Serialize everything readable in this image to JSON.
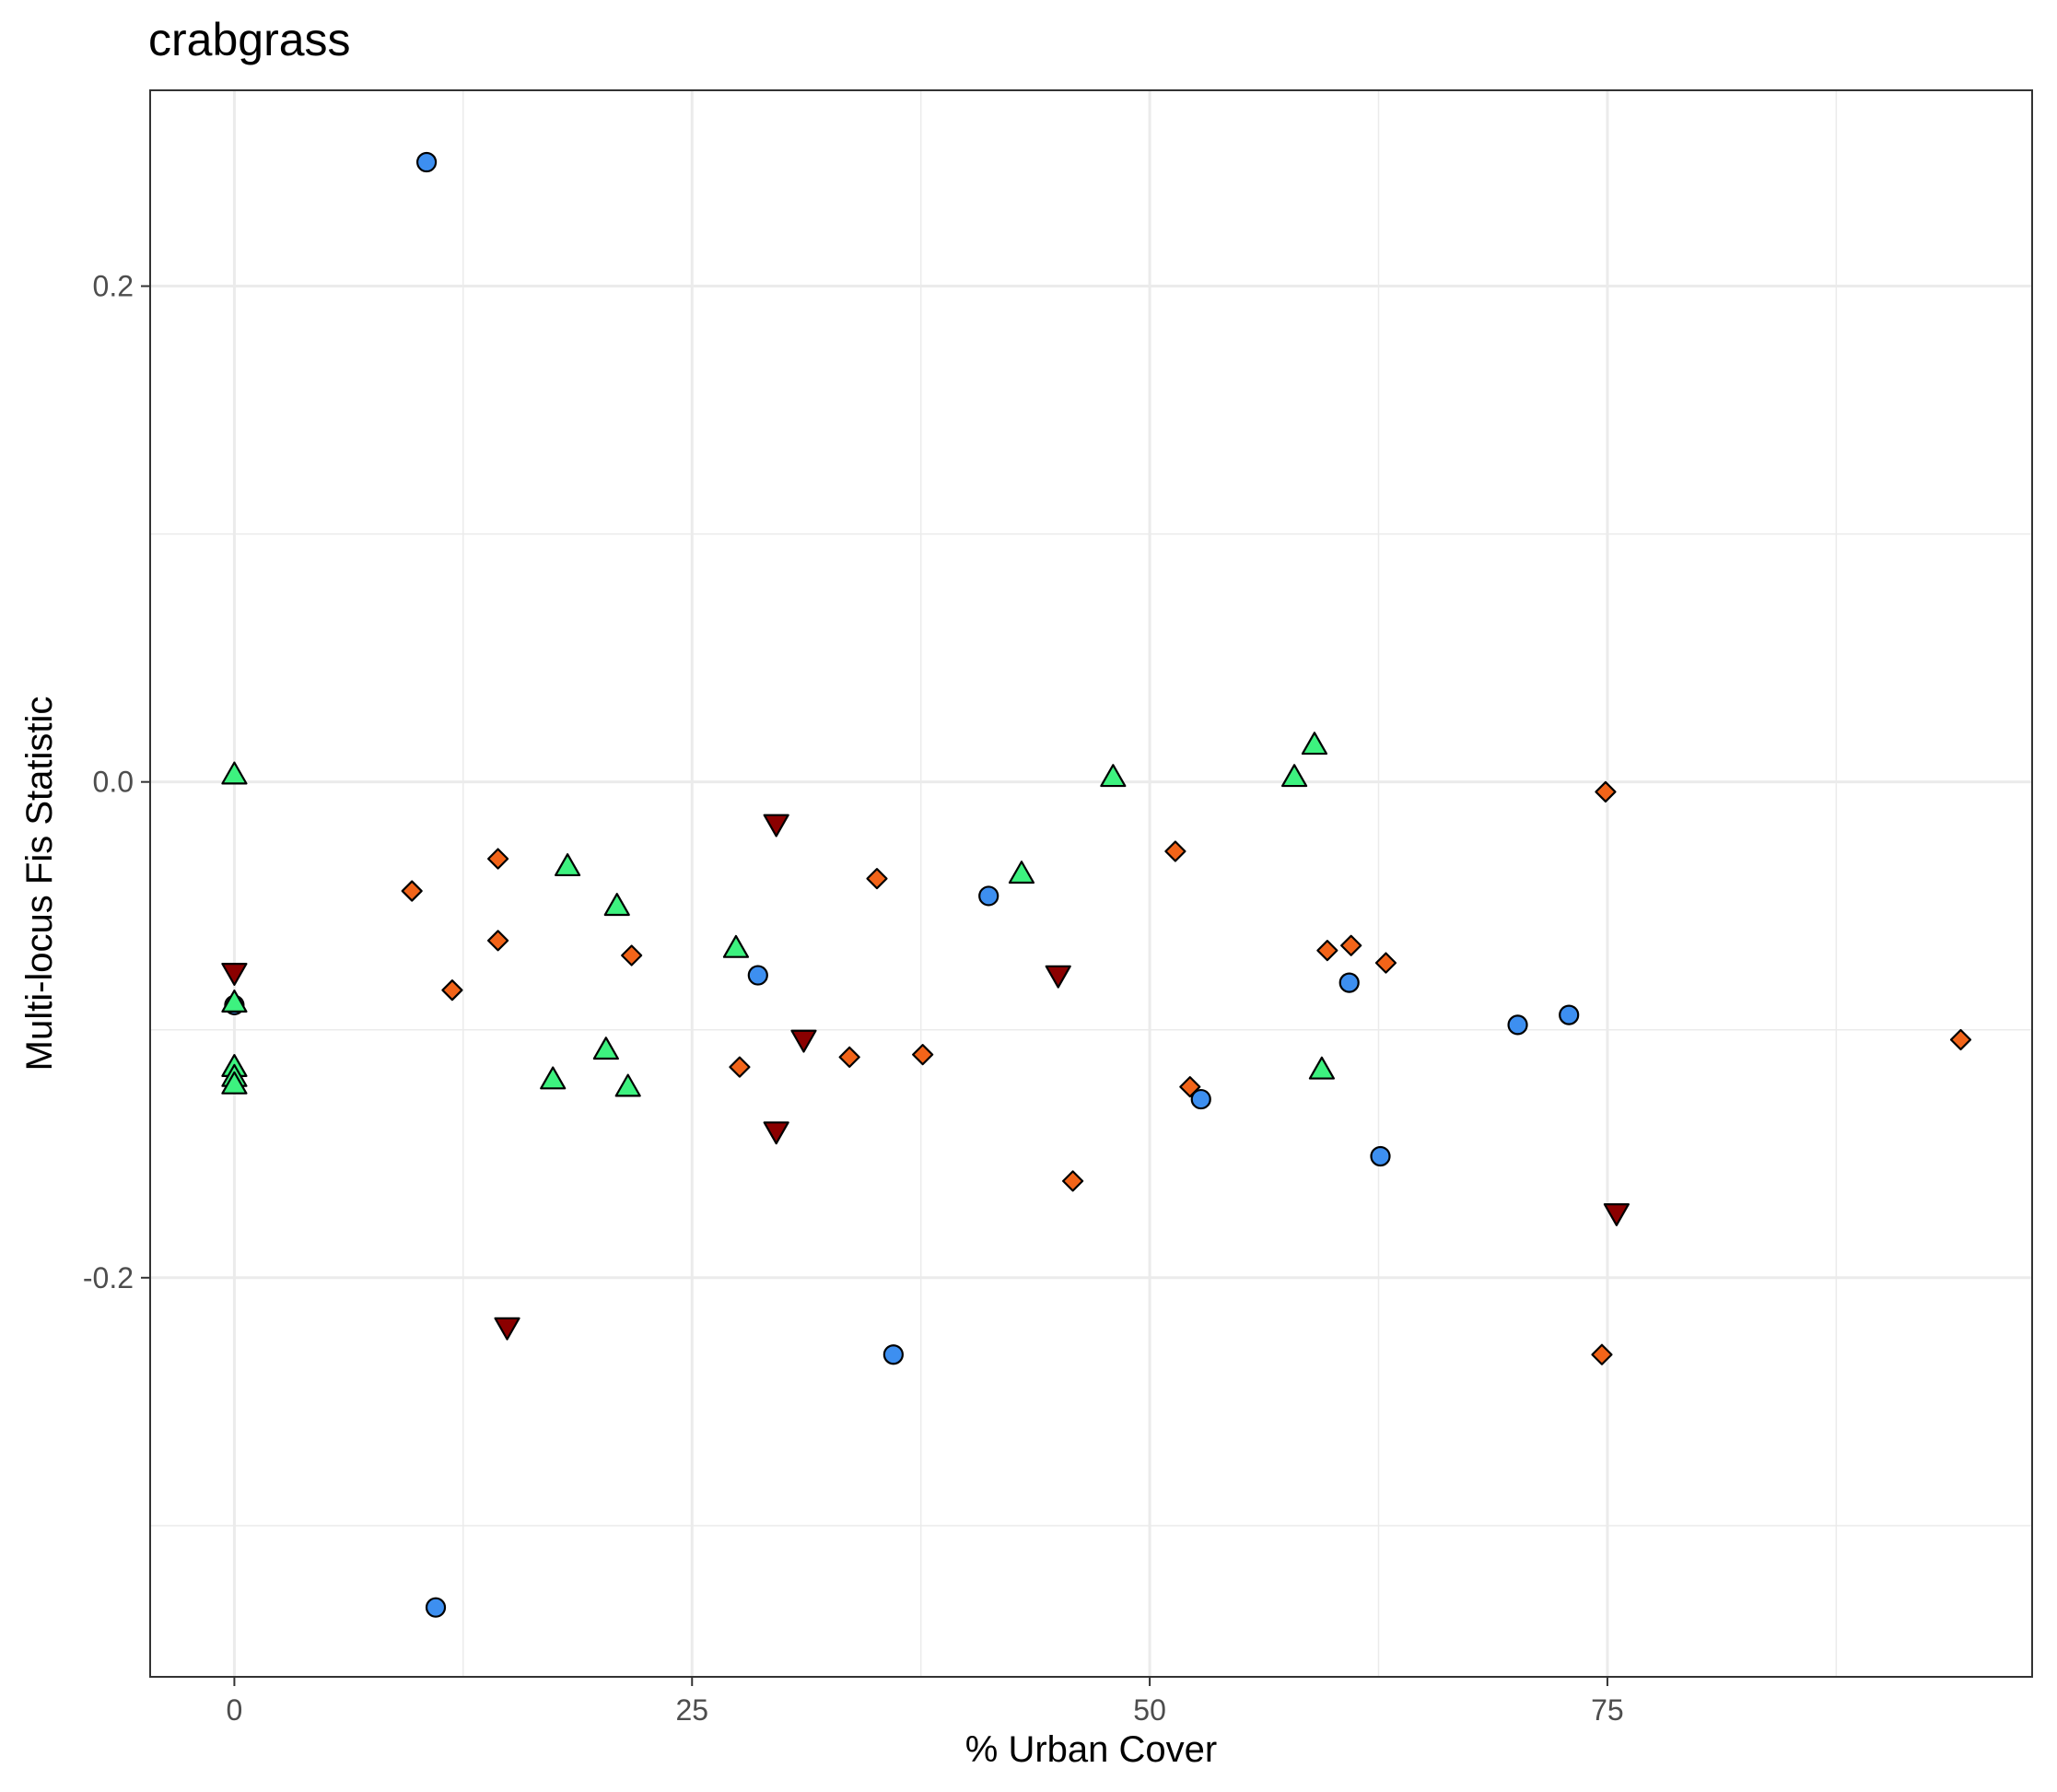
{
  "chart_data": {
    "type": "scatter",
    "title": "crabgrass",
    "xlabel": "% Urban Cover",
    "ylabel": "Multi-locus Fis Statistic",
    "xlim": [
      -4.6,
      98.2
    ],
    "ylim": [
      -0.361,
      0.279
    ],
    "x_ticks": [
      0,
      25,
      50,
      75
    ],
    "x_tick_labels": [
      "0",
      "25",
      "50",
      "75"
    ],
    "y_ticks": [
      -0.2,
      0.0,
      0.2
    ],
    "y_tick_labels": [
      "-0.2",
      "0.0",
      "0.2"
    ],
    "grid": true,
    "legend": "none",
    "series": [
      {
        "shape": "circle",
        "color": "#3d8ff0",
        "points": [
          [
            10.5,
            0.25
          ],
          [
            0,
            -0.09
          ],
          [
            11,
            -0.333
          ],
          [
            28.6,
            -0.078
          ],
          [
            36,
            -0.231
          ],
          [
            41.2,
            -0.046
          ],
          [
            52.8,
            -0.128
          ],
          [
            60.9,
            -0.081
          ],
          [
            62.6,
            -0.151
          ],
          [
            70.1,
            -0.098
          ],
          [
            72.9,
            -0.094
          ]
        ]
      },
      {
        "shape": "diamond",
        "color": "#f26419",
        "points": [
          [
            9.7,
            -0.044
          ],
          [
            11.9,
            -0.084
          ],
          [
            14.4,
            -0.031
          ],
          [
            14.4,
            -0.064
          ],
          [
            21.7,
            -0.07
          ],
          [
            27.6,
            -0.115
          ],
          [
            33.6,
            -0.111
          ],
          [
            35.1,
            -0.039
          ],
          [
            37.6,
            -0.11
          ],
          [
            45.8,
            -0.161
          ],
          [
            51.4,
            -0.028
          ],
          [
            52.2,
            -0.123
          ],
          [
            59.7,
            -0.068
          ],
          [
            61,
            -0.066
          ],
          [
            62.9,
            -0.073
          ],
          [
            74.9,
            -0.004
          ],
          [
            74.7,
            -0.231
          ],
          [
            94.3,
            -0.104
          ]
        ]
      },
      {
        "shape": "triangle-up",
        "color": "#3df27f",
        "points": [
          [
            0,
            0.003
          ],
          [
            0,
            -0.089
          ],
          [
            0,
            -0.115
          ],
          [
            0,
            -0.119
          ],
          [
            0,
            -0.122
          ],
          [
            17.4,
            -0.12
          ],
          [
            18.2,
            -0.034
          ],
          [
            20.3,
            -0.108
          ],
          [
            20.9,
            -0.05
          ],
          [
            21.5,
            -0.123
          ],
          [
            27.4,
            -0.067
          ],
          [
            43,
            -0.037
          ],
          [
            48,
            0.002
          ],
          [
            57.9,
            0.002
          ],
          [
            59,
            0.015
          ],
          [
            59.4,
            -0.116
          ]
        ]
      },
      {
        "shape": "triangle-down",
        "color": "#8b0000",
        "points": [
          [
            0,
            -0.077
          ],
          [
            14.9,
            -0.22
          ],
          [
            29.6,
            -0.017
          ],
          [
            29.6,
            -0.141
          ],
          [
            31.1,
            -0.104
          ],
          [
            45,
            -0.078
          ],
          [
            75.5,
            -0.174
          ]
        ]
      }
    ]
  }
}
